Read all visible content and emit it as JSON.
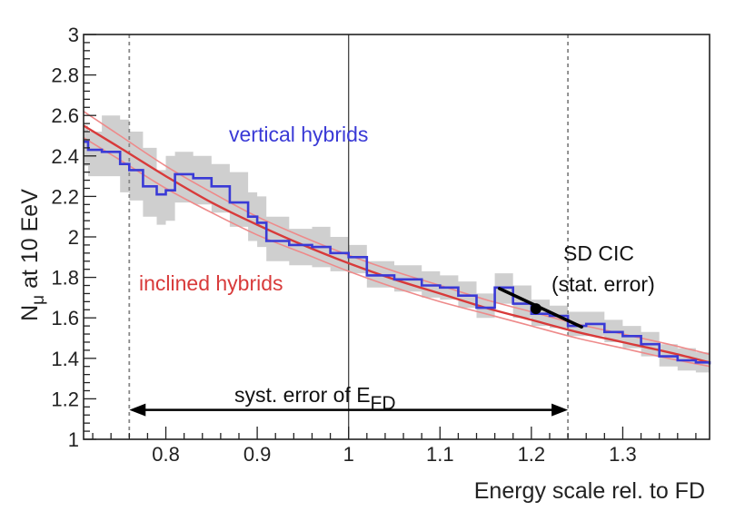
{
  "chart_data": {
    "type": "line",
    "xlabel": "Energy scale rel. to FD",
    "ylabel_main": "N",
    "ylabel_sub": "μ",
    "ylabel_rest": " at 10 EeV",
    "xlim": [
      0.71,
      1.395
    ],
    "ylim": [
      1.0,
      3.0
    ],
    "xticks": [
      0.8,
      0.9,
      1.0,
      1.1,
      1.2,
      1.3
    ],
    "xtick_labels": [
      "0.8",
      "0.9",
      "1",
      "1.1",
      "1.2",
      "1.3"
    ],
    "yticks": [
      1.0,
      1.2,
      1.4,
      1.6,
      1.8,
      2.0,
      2.2,
      2.4,
      2.6,
      2.8,
      3.0
    ],
    "ytick_labels": [
      "1",
      "1.2",
      "1.4",
      "1.6",
      "1.8",
      "2",
      "2.2",
      "2.4",
      "2.6",
      "2.8",
      "3"
    ],
    "reference_lines": {
      "solid_x": 1.0,
      "dashed_x": [
        0.76,
        1.24
      ]
    },
    "annotations": {
      "vertical_label": "vertical hybrids",
      "inclined_label": "inclined hybrids",
      "sdcic_line1": "SD CIC",
      "sdcic_line2": "(stat. error)",
      "syst_text": "syst. error of E",
      "syst_sub": "FD"
    },
    "colors": {
      "vertical": "#3a3ad6",
      "inclined": "#d83a3a",
      "inclined_band": "#ee8a8a",
      "band": "#cfcfcf",
      "axis": "#222222",
      "dashed": "#888888"
    },
    "sd_cic_point": {
      "x": 1.205,
      "y": 1.645
    },
    "sd_cic_error": {
      "x1": 1.165,
      "y1": 1.745,
      "x2": 1.255,
      "y2": 1.555
    },
    "syst_arrow": {
      "x1": 0.76,
      "x2": 1.24,
      "y": 1.145
    },
    "inclined_hybrids": {
      "name": "inclined hybrids",
      "x": [
        0.71,
        0.75,
        0.8,
        0.85,
        0.9,
        0.95,
        1.0,
        1.05,
        1.1,
        1.15,
        1.2,
        1.25,
        1.3,
        1.35,
        1.395
      ],
      "central": [
        2.55,
        2.44,
        2.3,
        2.17,
        2.06,
        1.96,
        1.87,
        1.79,
        1.72,
        1.65,
        1.59,
        1.53,
        1.48,
        1.43,
        1.38
      ],
      "upper": [
        2.62,
        2.5,
        2.35,
        2.22,
        2.1,
        2.0,
        1.91,
        1.83,
        1.76,
        1.69,
        1.63,
        1.57,
        1.52,
        1.47,
        1.42
      ],
      "lower": [
        2.49,
        2.38,
        2.24,
        2.12,
        2.01,
        1.92,
        1.83,
        1.75,
        1.68,
        1.62,
        1.56,
        1.5,
        1.45,
        1.4,
        1.36
      ]
    },
    "vertical_hybrids": {
      "name": "vertical hybrids",
      "x": [
        0.71,
        0.715,
        0.73,
        0.75,
        0.76,
        0.775,
        0.79,
        0.8,
        0.81,
        0.83,
        0.85,
        0.87,
        0.89,
        0.9,
        0.91,
        0.935,
        0.96,
        0.98,
        1.0,
        1.02,
        1.05,
        1.08,
        1.1,
        1.12,
        1.14,
        1.16,
        1.18,
        1.2,
        1.22,
        1.24,
        1.26,
        1.28,
        1.3,
        1.32,
        1.34,
        1.36,
        1.38,
        1.395
      ],
      "y": [
        2.47,
        2.43,
        2.42,
        2.36,
        2.33,
        2.25,
        2.21,
        2.23,
        2.31,
        2.29,
        2.25,
        2.17,
        2.1,
        2.07,
        1.98,
        1.96,
        1.95,
        1.92,
        1.9,
        1.81,
        1.79,
        1.76,
        1.75,
        1.71,
        1.65,
        1.75,
        1.67,
        1.62,
        1.61,
        1.56,
        1.57,
        1.53,
        1.51,
        1.47,
        1.41,
        1.39,
        1.38,
        1.37
      ],
      "band_upper": [
        2.55,
        2.52,
        2.6,
        2.58,
        2.52,
        2.44,
        2.33,
        2.4,
        2.42,
        2.4,
        2.36,
        2.32,
        2.22,
        2.2,
        2.1,
        2.04,
        2.05,
        2.0,
        1.96,
        1.88,
        1.86,
        1.83,
        1.81,
        1.78,
        1.72,
        1.82,
        1.76,
        1.69,
        1.66,
        1.63,
        1.63,
        1.59,
        1.56,
        1.53,
        1.47,
        1.45,
        1.43,
        1.42
      ],
      "band_lower": [
        2.35,
        2.3,
        2.3,
        2.22,
        2.18,
        2.1,
        2.06,
        2.08,
        2.17,
        2.16,
        2.12,
        2.05,
        1.98,
        1.95,
        1.88,
        1.86,
        1.85,
        1.83,
        1.82,
        1.75,
        1.73,
        1.7,
        1.69,
        1.65,
        1.6,
        1.67,
        1.6,
        1.56,
        1.55,
        1.51,
        1.51,
        1.48,
        1.45,
        1.41,
        1.36,
        1.34,
        1.33,
        1.32
      ]
    }
  }
}
